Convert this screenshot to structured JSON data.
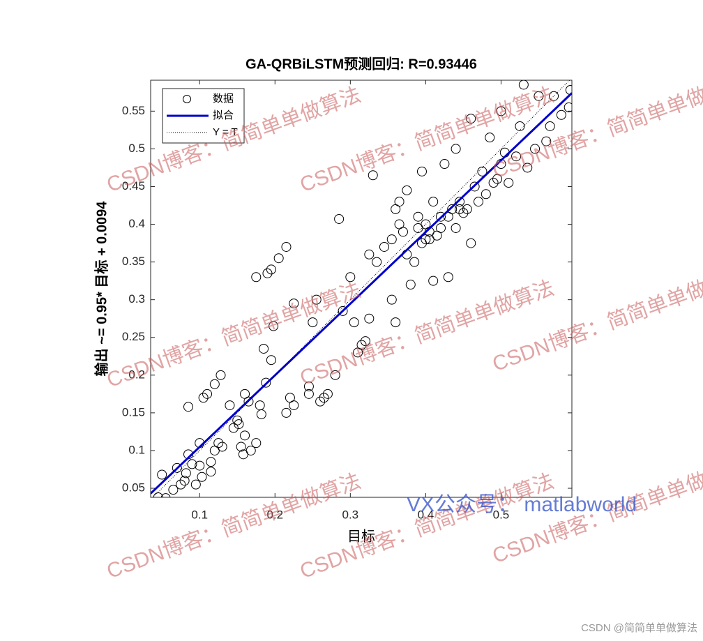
{
  "chart_data": {
    "type": "scatter",
    "title": "GA-QRBiLSTM预测回归: R=0.93446",
    "xlabel": "目标",
    "ylabel": "输出 ~= 0.95* 目标 + 0.0094",
    "xlim": [
      0.035,
      0.594
    ],
    "ylim": [
      0.038,
      0.591
    ],
    "xticks": [
      0.1,
      0.2,
      0.3,
      0.4,
      0.5
    ],
    "yticks": [
      0.05,
      0.1,
      0.15,
      0.2,
      0.25,
      0.3,
      0.35,
      0.4,
      0.45,
      0.5,
      0.55
    ],
    "legend": "upper left",
    "series": [
      {
        "name": "数据",
        "color": "#000000",
        "mark": "circle",
        "x": [
          0.045,
          0.05,
          0.055,
          0.065,
          0.07,
          0.075,
          0.08,
          0.082,
          0.085,
          0.085,
          0.09,
          0.095,
          0.1,
          0.1,
          0.103,
          0.105,
          0.11,
          0.115,
          0.115,
          0.12,
          0.12,
          0.125,
          0.128,
          0.13,
          0.14,
          0.145,
          0.15,
          0.152,
          0.155,
          0.158,
          0.16,
          0.16,
          0.165,
          0.168,
          0.175,
          0.175,
          0.18,
          0.182,
          0.185,
          0.188,
          0.19,
          0.195,
          0.195,
          0.198,
          0.205,
          0.215,
          0.215,
          0.22,
          0.225,
          0.225,
          0.245,
          0.245,
          0.25,
          0.255,
          0.26,
          0.265,
          0.27,
          0.28,
          0.285,
          0.29,
          0.3,
          0.305,
          0.31,
          0.315,
          0.32,
          0.325,
          0.325,
          0.33,
          0.335,
          0.345,
          0.355,
          0.36,
          0.36,
          0.365,
          0.37,
          0.375,
          0.38,
          0.385,
          0.39,
          0.39,
          0.395,
          0.4,
          0.405,
          0.41,
          0.41,
          0.415,
          0.42,
          0.425,
          0.43,
          0.43,
          0.435,
          0.44,
          0.445,
          0.45,
          0.455,
          0.46,
          0.46,
          0.465,
          0.47,
          0.475,
          0.48,
          0.485,
          0.49,
          0.495,
          0.5,
          0.5,
          0.505,
          0.51,
          0.52,
          0.525,
          0.53,
          0.535,
          0.545,
          0.55,
          0.56,
          0.565,
          0.57,
          0.58,
          0.59,
          0.592,
          0.4,
          0.395,
          0.405,
          0.42,
          0.44,
          0.445,
          0.375,
          0.365,
          0.355
        ],
        "values": [
          0.038,
          0.068,
          0.037,
          0.048,
          0.077,
          0.055,
          0.06,
          0.07,
          0.095,
          0.158,
          0.082,
          0.055,
          0.11,
          0.08,
          0.065,
          0.17,
          0.175,
          0.072,
          0.085,
          0.188,
          0.1,
          0.11,
          0.2,
          0.105,
          0.16,
          0.13,
          0.14,
          0.135,
          0.105,
          0.095,
          0.12,
          0.175,
          0.165,
          0.1,
          0.11,
          0.33,
          0.16,
          0.148,
          0.235,
          0.19,
          0.335,
          0.22,
          0.34,
          0.265,
          0.355,
          0.37,
          0.15,
          0.17,
          0.16,
          0.295,
          0.175,
          0.185,
          0.27,
          0.3,
          0.165,
          0.17,
          0.175,
          0.2,
          0.407,
          0.285,
          0.33,
          0.27,
          0.23,
          0.24,
          0.245,
          0.275,
          0.36,
          0.465,
          0.35,
          0.37,
          0.3,
          0.27,
          0.42,
          0.43,
          0.39,
          0.445,
          0.32,
          0.35,
          0.41,
          0.395,
          0.47,
          0.4,
          0.38,
          0.43,
          0.325,
          0.385,
          0.395,
          0.48,
          0.41,
          0.33,
          0.42,
          0.5,
          0.43,
          0.415,
          0.42,
          0.375,
          0.54,
          0.45,
          0.43,
          0.47,
          0.44,
          0.515,
          0.455,
          0.46,
          0.55,
          0.48,
          0.495,
          0.455,
          0.49,
          0.53,
          0.585,
          0.475,
          0.5,
          0.57,
          0.51,
          0.53,
          0.57,
          0.545,
          0.555,
          0.578,
          0.38,
          0.375,
          0.39,
          0.41,
          0.395,
          0.42,
          0.36,
          0.4,
          0.38
        ]
      },
      {
        "name": "拟合",
        "color": "#0000cc",
        "mark": "solid",
        "x": [
          0.035,
          0.594
        ],
        "values": [
          0.043,
          0.574
        ]
      },
      {
        "name": "Y = T",
        "color": "#000000",
        "mark": "dotted",
        "x": [
          0.035,
          0.594
        ],
        "values": [
          0.035,
          0.594
        ]
      }
    ]
  },
  "watermark": "CSDN博客：简简单单做算法",
  "wechat": "VX公众号：  matlabworld",
  "footer": "CSDN @简简单单做算法"
}
